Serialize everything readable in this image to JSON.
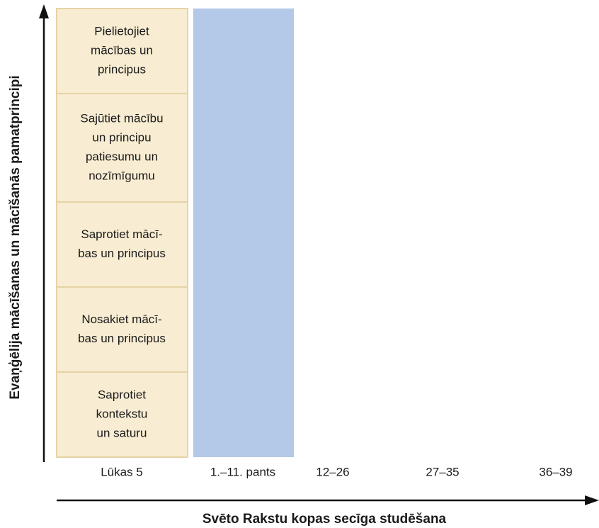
{
  "y_axis_label": "Evaņģēlija mācīšanas un mācīšanās pamatprincipi",
  "x_axis_label": "Svēto Rakstu kopas secīga studēšana",
  "boxes": [
    {
      "lines": [
        "Pielietojiet",
        "mācības un",
        "principus"
      ]
    },
    {
      "lines": [
        "Sajūtiet mācību",
        "un principu",
        "patiesumu un",
        "nozīmīgumu"
      ]
    },
    {
      "lines": [
        "Saprotiet mācī-",
        "bas un principus"
      ]
    },
    {
      "lines": [
        "Nosakiet mācī-",
        "bas un principus"
      ]
    },
    {
      "lines": [
        "Saprotiet",
        "kontekstu",
        "un saturu"
      ]
    }
  ],
  "columns": [
    "Lūkas 5",
    "1.–11. pants",
    "12–26",
    "27–35",
    "36–39"
  ]
}
